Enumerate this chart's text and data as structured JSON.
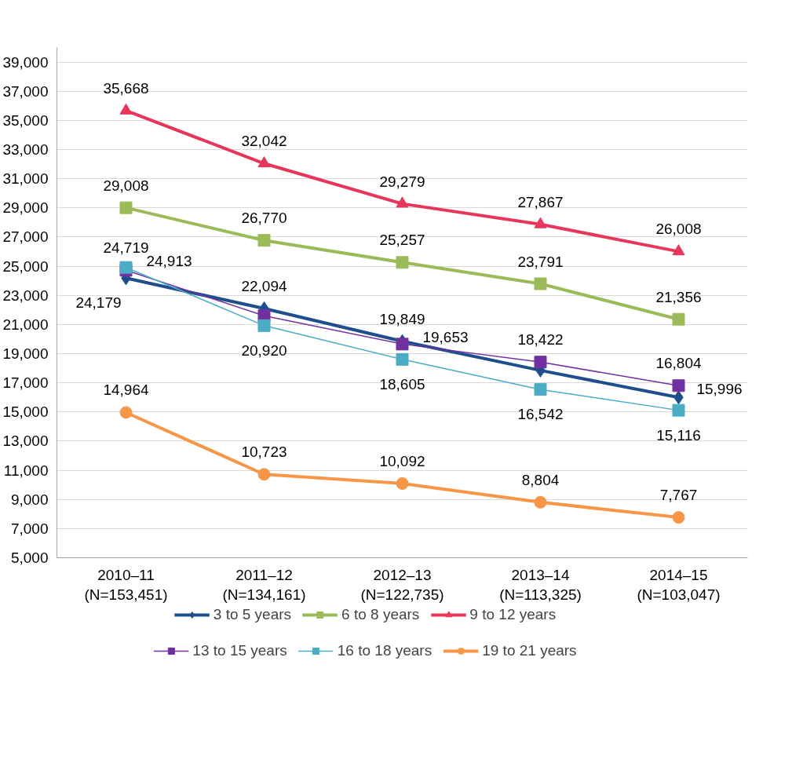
{
  "chart_data": {
    "type": "line",
    "categories": [
      "2010–11\n(N=153,451)",
      "2011–12\n(N=134,161)",
      "2012–13\n(N=122,735)",
      "2013–14\n(N=113,325)",
      "2014–15\n(N=103,047)"
    ],
    "series": [
      {
        "name": "3 to 5 years",
        "color": "#1f4e8c",
        "marker": "diamond",
        "values": [
          24179,
          22094,
          19849,
          17850,
          15996
        ],
        "value_labels": [
          "24,179",
          "22,094",
          "19,849",
          null,
          "15,996"
        ]
      },
      {
        "name": "6 to 8 years",
        "color": "#9bbb59",
        "marker": "square",
        "values": [
          29008,
          26770,
          25257,
          23791,
          21356
        ],
        "value_labels": [
          "29,008",
          "26,770",
          "25,257",
          "23,791",
          "21,356"
        ]
      },
      {
        "name": "9 to 12 years",
        "color": "#e8365a",
        "marker": "triangle",
        "values": [
          35668,
          32042,
          29279,
          27867,
          26008
        ],
        "value_labels": [
          "35,668",
          "32,042",
          "29,279",
          "27,867",
          "26,008"
        ]
      },
      {
        "name": "13 to 15 years",
        "color": "#7030a0",
        "marker": "square",
        "values": [
          24719,
          21600,
          19653,
          18422,
          16804
        ],
        "value_labels": [
          "24,719",
          null,
          "19,653",
          "18,422",
          "16,804"
        ]
      },
      {
        "name": "16 to 18 years",
        "color": "#4bacc6",
        "marker": "square",
        "values": [
          24913,
          20920,
          18605,
          16542,
          15116
        ],
        "value_labels": [
          "24,913",
          "20,920",
          "18,605",
          "16,542",
          "15,116"
        ]
      },
      {
        "name": "19 to 21 years",
        "color": "#f79646",
        "marker": "circle",
        "values": [
          14964,
          10723,
          10092,
          8804,
          7767
        ],
        "value_labels": [
          "14,964",
          "10,723",
          "10,092",
          "8,804",
          "7,767"
        ]
      }
    ],
    "ylim": [
      5000,
      40000
    ],
    "yticks": [
      {
        "value": 5000,
        "label": "5,000"
      },
      {
        "value": 7000,
        "label": "7,000"
      },
      {
        "value": 9000,
        "label": "9,000"
      },
      {
        "value": 11000,
        "label": "11,000"
      },
      {
        "value": 13000,
        "label": "13,000"
      },
      {
        "value": 15000,
        "label": "15,000"
      },
      {
        "value": 17000,
        "label": "17,000"
      },
      {
        "value": 19000,
        "label": "19,000"
      },
      {
        "value": 21000,
        "label": "21,000"
      },
      {
        "value": 23000,
        "label": "23,000"
      },
      {
        "value": 25000,
        "label": "25,000"
      },
      {
        "value": 27000,
        "label": "27,000"
      },
      {
        "value": 29000,
        "label": "29,000"
      },
      {
        "value": 31000,
        "label": "31,000"
      },
      {
        "value": 33000,
        "label": "33,000"
      },
      {
        "value": 35000,
        "label": "35,000"
      },
      {
        "value": 37000,
        "label": "37,000"
      },
      {
        "value": 39000,
        "label": "39,000"
      }
    ],
    "grid": "y",
    "legend": "bottom",
    "line_style": "solid"
  }
}
